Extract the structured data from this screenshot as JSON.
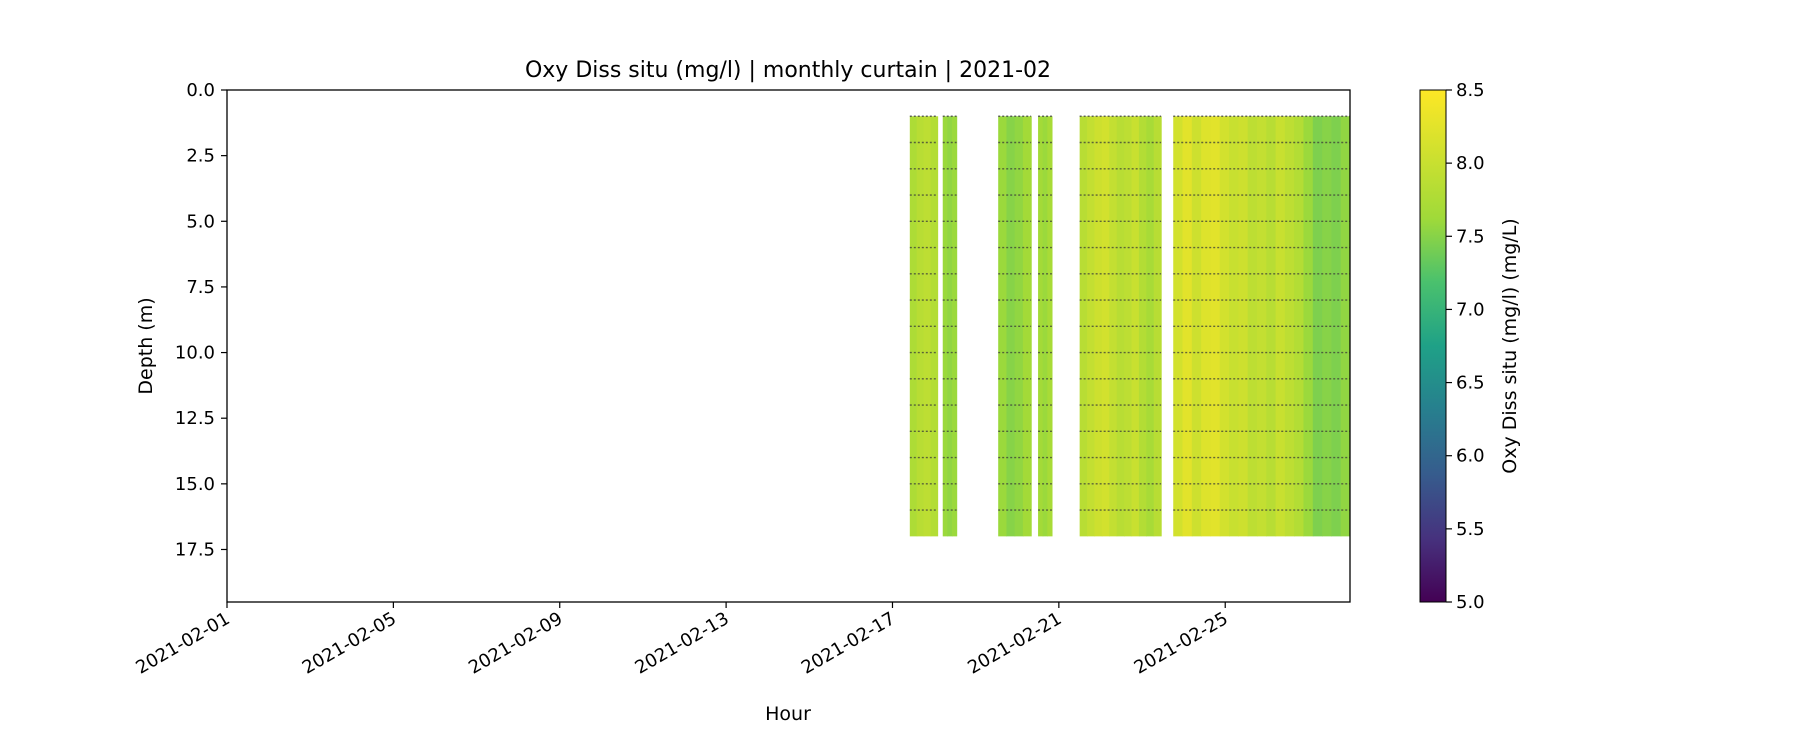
{
  "chart_data": {
    "type": "heatmap",
    "title": "Oxy Diss situ (mg/l) | monthly curtain | 2021-02",
    "xlabel": "Hour",
    "ylabel": "Depth (m)",
    "colorbar_label": "Oxy Diss situ (mg/l) (mg/L)",
    "colormap": "viridis",
    "x_range": [
      "2021-02-01",
      "2021-02-28"
    ],
    "x_ticks": [
      "2021-02-01",
      "2021-02-05",
      "2021-02-09",
      "2021-02-13",
      "2021-02-17",
      "2021-02-21",
      "2021-02-25"
    ],
    "y_range": [
      19.5,
      0
    ],
    "y_ticks": [
      "0.0",
      "2.5",
      "5.0",
      "7.5",
      "10.0",
      "12.5",
      "15.0",
      "17.5"
    ],
    "color_range": [
      5.0,
      8.5
    ],
    "colorbar_ticks": [
      "5.0",
      "5.5",
      "6.0",
      "6.5",
      "7.0",
      "7.5",
      "8.0",
      "8.5"
    ],
    "sensor_depths_m": [
      1,
      2,
      3,
      4,
      5,
      6,
      7,
      8,
      9,
      10,
      11,
      12,
      13,
      14,
      15,
      16
    ],
    "data_segments": [
      {
        "start": "2021-02-17T10:00",
        "end": "2021-02-18T02:00",
        "depth_top": 1.0,
        "depth_bottom": 17.0,
        "values": [
          7.75,
          7.85,
          7.9,
          7.8
        ]
      },
      {
        "start": "2021-02-18T05:00",
        "end": "2021-02-18T13:00",
        "depth_top": 1.0,
        "depth_bottom": 17.0,
        "values": [
          7.6,
          7.55,
          7.6
        ]
      },
      {
        "start": "2021-02-19T13:00",
        "end": "2021-02-20T08:00",
        "depth_top": 1.0,
        "depth_bottom": 17.0,
        "values": [
          7.6,
          7.5,
          7.55,
          7.65
        ]
      },
      {
        "start": "2021-02-20T12:00",
        "end": "2021-02-20T20:00",
        "depth_top": 1.0,
        "depth_bottom": 17.0,
        "values": [
          7.65,
          7.6,
          7.7
        ]
      },
      {
        "start": "2021-02-21T12:00",
        "end": "2021-02-23T11:00",
        "depth_top": 1.0,
        "depth_bottom": 17.0,
        "values": [
          7.85,
          7.95,
          8.05,
          8.1,
          7.95,
          7.85,
          7.9,
          8.0,
          7.8,
          7.7,
          7.85
        ]
      },
      {
        "start": "2021-02-23T18:00",
        "end": "2021-02-28T00:00",
        "depth_top": 1.0,
        "depth_bottom": 17.0,
        "values": [
          8.1,
          8.25,
          8.05,
          8.2,
          8.25,
          8.1,
          8.0,
          8.05,
          7.9,
          7.95,
          7.85,
          8.0,
          7.9,
          7.8,
          7.6,
          7.45,
          7.5,
          7.45,
          7.55
        ]
      }
    ]
  }
}
